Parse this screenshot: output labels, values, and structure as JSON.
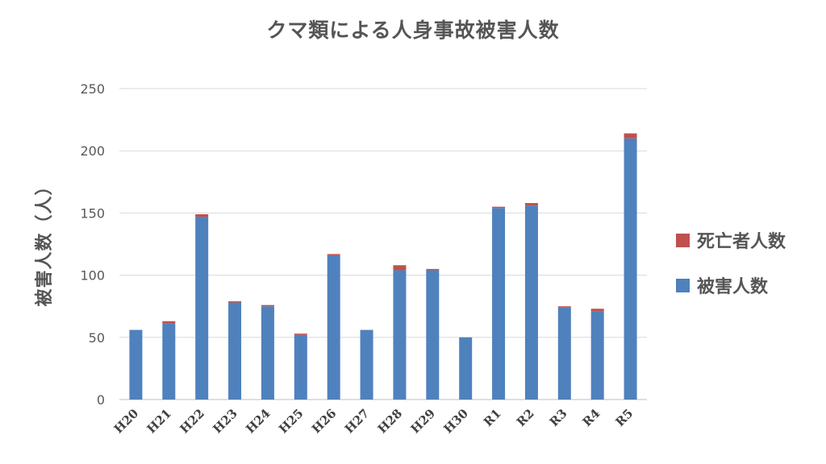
{
  "chart_data": {
    "type": "bar",
    "stacked": true,
    "title": "クマ類による人身事故被害人数",
    "xlabel": "",
    "ylabel": "被害人数（人）",
    "ylim": [
      0,
      250
    ],
    "yticks": [
      0,
      50,
      100,
      150,
      200,
      250
    ],
    "grid": true,
    "legend_position": "right",
    "categories": [
      "H20",
      "H21",
      "H22",
      "H23",
      "H24",
      "H25",
      "H26",
      "H27",
      "H28",
      "H29",
      "H30",
      "R1",
      "R2",
      "R3",
      "R4",
      "R5"
    ],
    "series": [
      {
        "name": "被害人数",
        "color": "#4f81bd",
        "values": [
          56,
          61,
          147,
          78,
          75,
          52,
          116,
          56,
          104,
          104,
          50,
          154,
          156,
          74,
          71,
          210
        ]
      },
      {
        "name": "死亡者人数",
        "color": "#c0504d",
        "values": [
          0,
          2,
          2,
          1,
          1,
          1,
          1,
          0,
          4,
          1,
          0,
          1,
          2,
          1,
          2,
          4
        ]
      }
    ],
    "legend_order": [
      "死亡者人数",
      "被害人数"
    ]
  },
  "colors": {
    "gridline": "#d9d9d9",
    "axis": "#bfbfbf",
    "text": "#555555"
  }
}
